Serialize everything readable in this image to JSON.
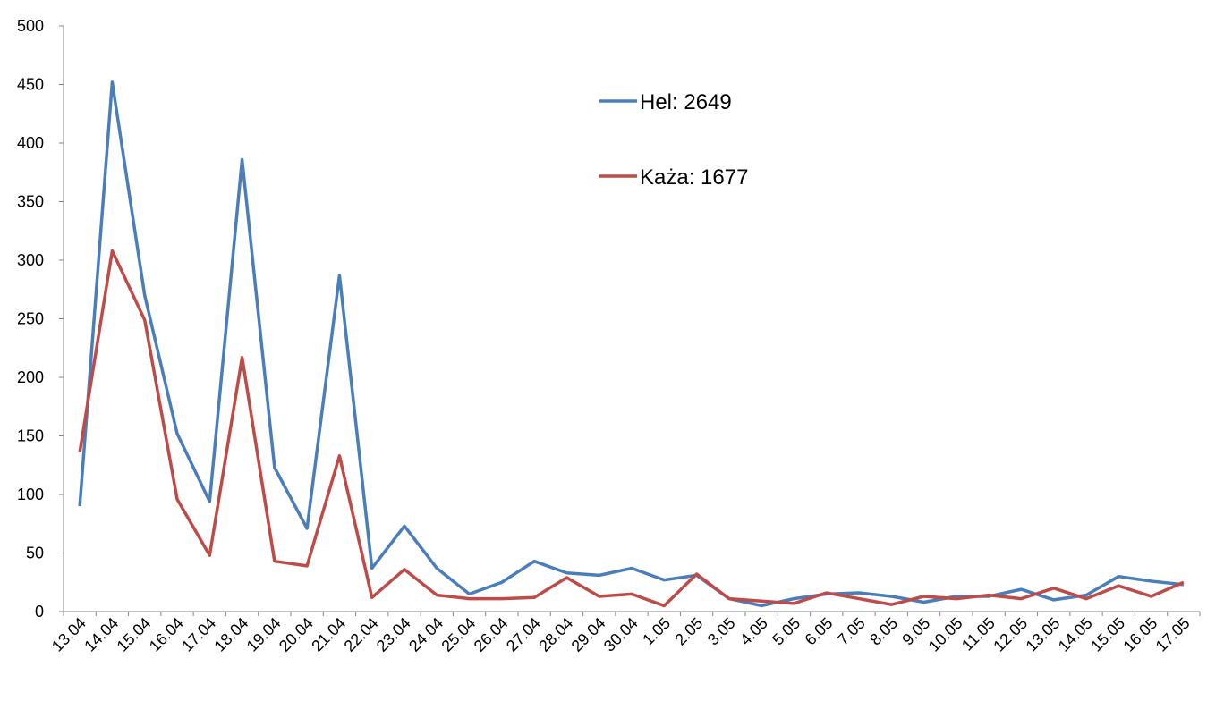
{
  "chart_data": {
    "type": "line",
    "title": "",
    "xlabel": "",
    "ylabel": "",
    "ylim": [
      0,
      500
    ],
    "yticks": [
      "0",
      "50",
      "100",
      "150",
      "200",
      "250",
      "300",
      "350",
      "400",
      "450",
      "500"
    ],
    "grid": false,
    "legend_position": "top-center",
    "categories": [
      "13.04",
      "14.04",
      "15.04",
      "16.04",
      "17.04",
      "18.04",
      "19.04",
      "20.04",
      "21.04",
      "22.04",
      "23.04",
      "24.04",
      "25.04",
      "26.04",
      "27.04",
      "28.04",
      "29.04",
      "30.04",
      "1.05",
      "2.05",
      "3.05",
      "4.05",
      "5.05",
      "6.05",
      "7.05",
      "8.05",
      "9.05",
      "10.05",
      "11.05",
      "12.05",
      "13.05",
      "14.05",
      "15.05",
      "16.05",
      "17.05"
    ],
    "series": [
      {
        "name": "Hel: 2649",
        "color": "#4a7ebb",
        "values": [
          90,
          452,
          270,
          152,
          94,
          386,
          123,
          71,
          287,
          37,
          73,
          37,
          15,
          25,
          43,
          33,
          31,
          37,
          27,
          31,
          11,
          5,
          11,
          15,
          16,
          13,
          8,
          13,
          13,
          19,
          10,
          14,
          30,
          26,
          23
        ]
      },
      {
        "name": "Każa: 1677",
        "color": "#be4b48",
        "values": [
          136,
          308,
          249,
          96,
          48,
          217,
          43,
          39,
          133,
          12,
          36,
          14,
          11,
          11,
          12,
          29,
          13,
          15,
          5,
          32,
          11,
          9,
          7,
          16,
          11,
          6,
          13,
          11,
          14,
          11,
          20,
          11,
          22,
          13,
          25
        ]
      }
    ]
  }
}
